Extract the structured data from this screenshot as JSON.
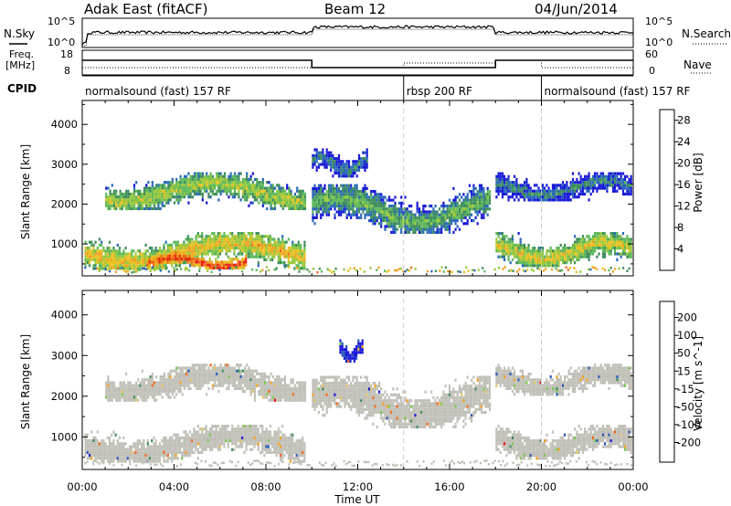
{
  "header": {
    "title": "Adak East (fitACF)",
    "beam": "Beam 12",
    "date": "04/Jun/2014"
  },
  "noise_panel": {
    "left_label": "N.Sky",
    "right_label": "N.Search",
    "left_ticks": [
      "10^5",
      "10^0"
    ],
    "right_ticks": [
      "10^5",
      "10^0"
    ]
  },
  "freq_panel": {
    "left_label": "Freq.",
    "left_unit": "[MHz]",
    "right_label": "Nave",
    "left_ticks": [
      "18",
      "8"
    ],
    "right_ticks": [
      "60",
      "0"
    ]
  },
  "cpid_panel": {
    "label": "CPID",
    "segments": [
      {
        "name": "normalsound (fast) 157 RF",
        "start_h": 0,
        "end_h": 14
      },
      {
        "name": "rbsp 200 RF",
        "start_h": 14,
        "end_h": 20
      },
      {
        "name": "normalsound (fast) 157 RF",
        "start_h": 20,
        "end_h": 24
      }
    ]
  },
  "chart_data": [
    {
      "type": "heatmap",
      "title": "",
      "xlabel": "Time UT",
      "ylabel": "Slant Range [km]",
      "xlim": [
        0,
        24
      ],
      "ylim": [
        200,
        4600
      ],
      "x_ticks": [
        "00:00",
        "04:00",
        "08:00",
        "12:00",
        "16:00",
        "20:00",
        "00:00"
      ],
      "y_ticks": [
        1000,
        2000,
        3000,
        4000
      ],
      "colorbar": {
        "label": "Power [dB]",
        "ticks": [
          4,
          8,
          12,
          16,
          20,
          24,
          28
        ],
        "range": [
          0,
          30
        ],
        "colors": [
          "#1818d8",
          "#2868b8",
          "#3c8c5c",
          "#5cb858",
          "#98c838",
          "#e8c020",
          "#f0a020",
          "#f06818",
          "#e82010"
        ]
      },
      "scatter_regions": [
        {
          "t0": 0.1,
          "t1": 9.8,
          "r0": 300,
          "r1": 1300,
          "value": 20
        },
        {
          "t0": 2.8,
          "t1": 7.2,
          "r0": 350,
          "r1": 800,
          "value": 28
        },
        {
          "t0": 1.0,
          "t1": 9.8,
          "r0": 1800,
          "r1": 2800,
          "value": 16
        },
        {
          "t0": 10.0,
          "t1": 17.8,
          "r0": 1200,
          "r1": 2500,
          "value": 12
        },
        {
          "t0": 10.0,
          "t1": 12.5,
          "r0": 2600,
          "r1": 3400,
          "value": 8
        },
        {
          "t0": 18.0,
          "t1": 24.0,
          "r0": 400,
          "r1": 1300,
          "value": 18
        },
        {
          "t0": 18.0,
          "t1": 24.0,
          "r0": 2000,
          "r1": 2800,
          "value": 8
        }
      ]
    },
    {
      "type": "heatmap",
      "title": "",
      "xlabel": "Time UT",
      "ylabel": "Slant Range [km]",
      "xlim": [
        0,
        24
      ],
      "ylim": [
        200,
        4600
      ],
      "x_ticks": [
        "00:00",
        "04:00",
        "08:00",
        "12:00",
        "16:00",
        "20:00",
        "00:00"
      ],
      "y_ticks": [
        1000,
        2000,
        3000,
        4000
      ],
      "colorbar": {
        "label": "Velocity [m s^-1]",
        "ticks": [
          200,
          100,
          50,
          15,
          -15,
          -50,
          -100,
          -200
        ],
        "range": [
          -250,
          250
        ],
        "colors": [
          "#e81010",
          "#f06818",
          "#f0a020",
          "#e8c060",
          "#c0c0b8",
          "#78c850",
          "#3c8c5c",
          "#2858b8",
          "#1818d8"
        ]
      },
      "scatter_regions": [
        {
          "t0": 0.1,
          "t1": 9.8,
          "r0": 300,
          "r1": 1300,
          "value": 0
        },
        {
          "t0": 1.0,
          "t1": 9.8,
          "r0": 1800,
          "r1": 2800,
          "value": 0
        },
        {
          "t0": 10.0,
          "t1": 17.8,
          "r0": 1200,
          "r1": 2500,
          "value": 10
        },
        {
          "t0": 11.2,
          "t1": 12.3,
          "r0": 2800,
          "r1": 3400,
          "value": 200
        },
        {
          "t0": 18.0,
          "t1": 24.0,
          "r0": 400,
          "r1": 1300,
          "value": 0
        },
        {
          "t0": 18.0,
          "t1": 24.0,
          "r0": 2000,
          "r1": 2800,
          "value": 0
        }
      ]
    }
  ]
}
